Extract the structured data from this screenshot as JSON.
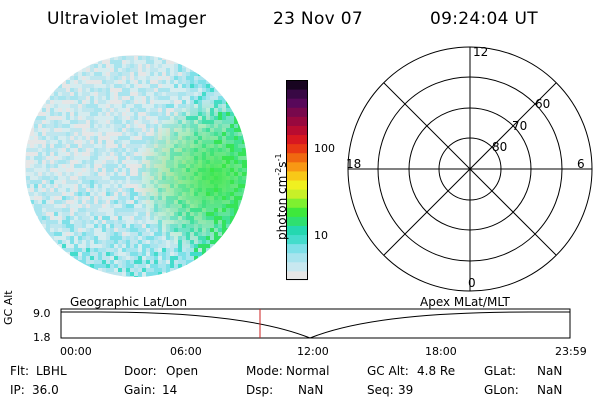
{
  "header": {
    "instrument": "Ultraviolet Imager",
    "date": "23 Nov 07",
    "time": "09:24:04 UT"
  },
  "colorbar": {
    "unit_label": "photon cm-2s-1",
    "tick_labels": [
      "100",
      "10"
    ],
    "colors": [
      "#e6e6e6",
      "#c8e8f0",
      "#a8e4ee",
      "#7ee0e8",
      "#44dccc",
      "#24d8b0",
      "#2ee070",
      "#3ee83c",
      "#7ef030",
      "#c8f028",
      "#f0f020",
      "#f8c818",
      "#f89814",
      "#f06810",
      "#e83814",
      "#d81820",
      "#b80c30",
      "#98083e",
      "#78084c",
      "#58085a",
      "#380844",
      "#180420"
    ]
  },
  "polar_grid": {
    "mlt_labels": [
      "12",
      "18",
      "6",
      "0"
    ],
    "lat_labels": [
      "60",
      "70",
      "80"
    ],
    "line_color": "#000000"
  },
  "timeline": {
    "ylabel": "GC Alt",
    "y_ticks": [
      "9.0",
      "1.8"
    ],
    "left_label": "Geographic Lat/Lon",
    "right_label": "Apex MLat/MLT",
    "x_ticks": [
      "00:00",
      "06:00",
      "12:00",
      "18:00",
      "23:59"
    ],
    "marker_color": "#cc2222"
  },
  "status": {
    "row1": [
      {
        "key": "Flt:",
        "value": "LBHL"
      },
      {
        "key": "Door:",
        "value": "Open"
      },
      {
        "key": "Mode:",
        "value": "Normal"
      },
      {
        "key": "GC Alt:",
        "value": "4.8 Re"
      },
      {
        "key": "GLat:",
        "value": "NaN"
      }
    ],
    "row2": [
      {
        "key": "IP:",
        "value": "36.0"
      },
      {
        "key": "Gain:",
        "value": "14"
      },
      {
        "key": "Dsp:",
        "value": "NaN"
      },
      {
        "key": "Seq:",
        "value": "39"
      },
      {
        "key": "GLon:",
        "value": "NaN"
      }
    ]
  }
}
